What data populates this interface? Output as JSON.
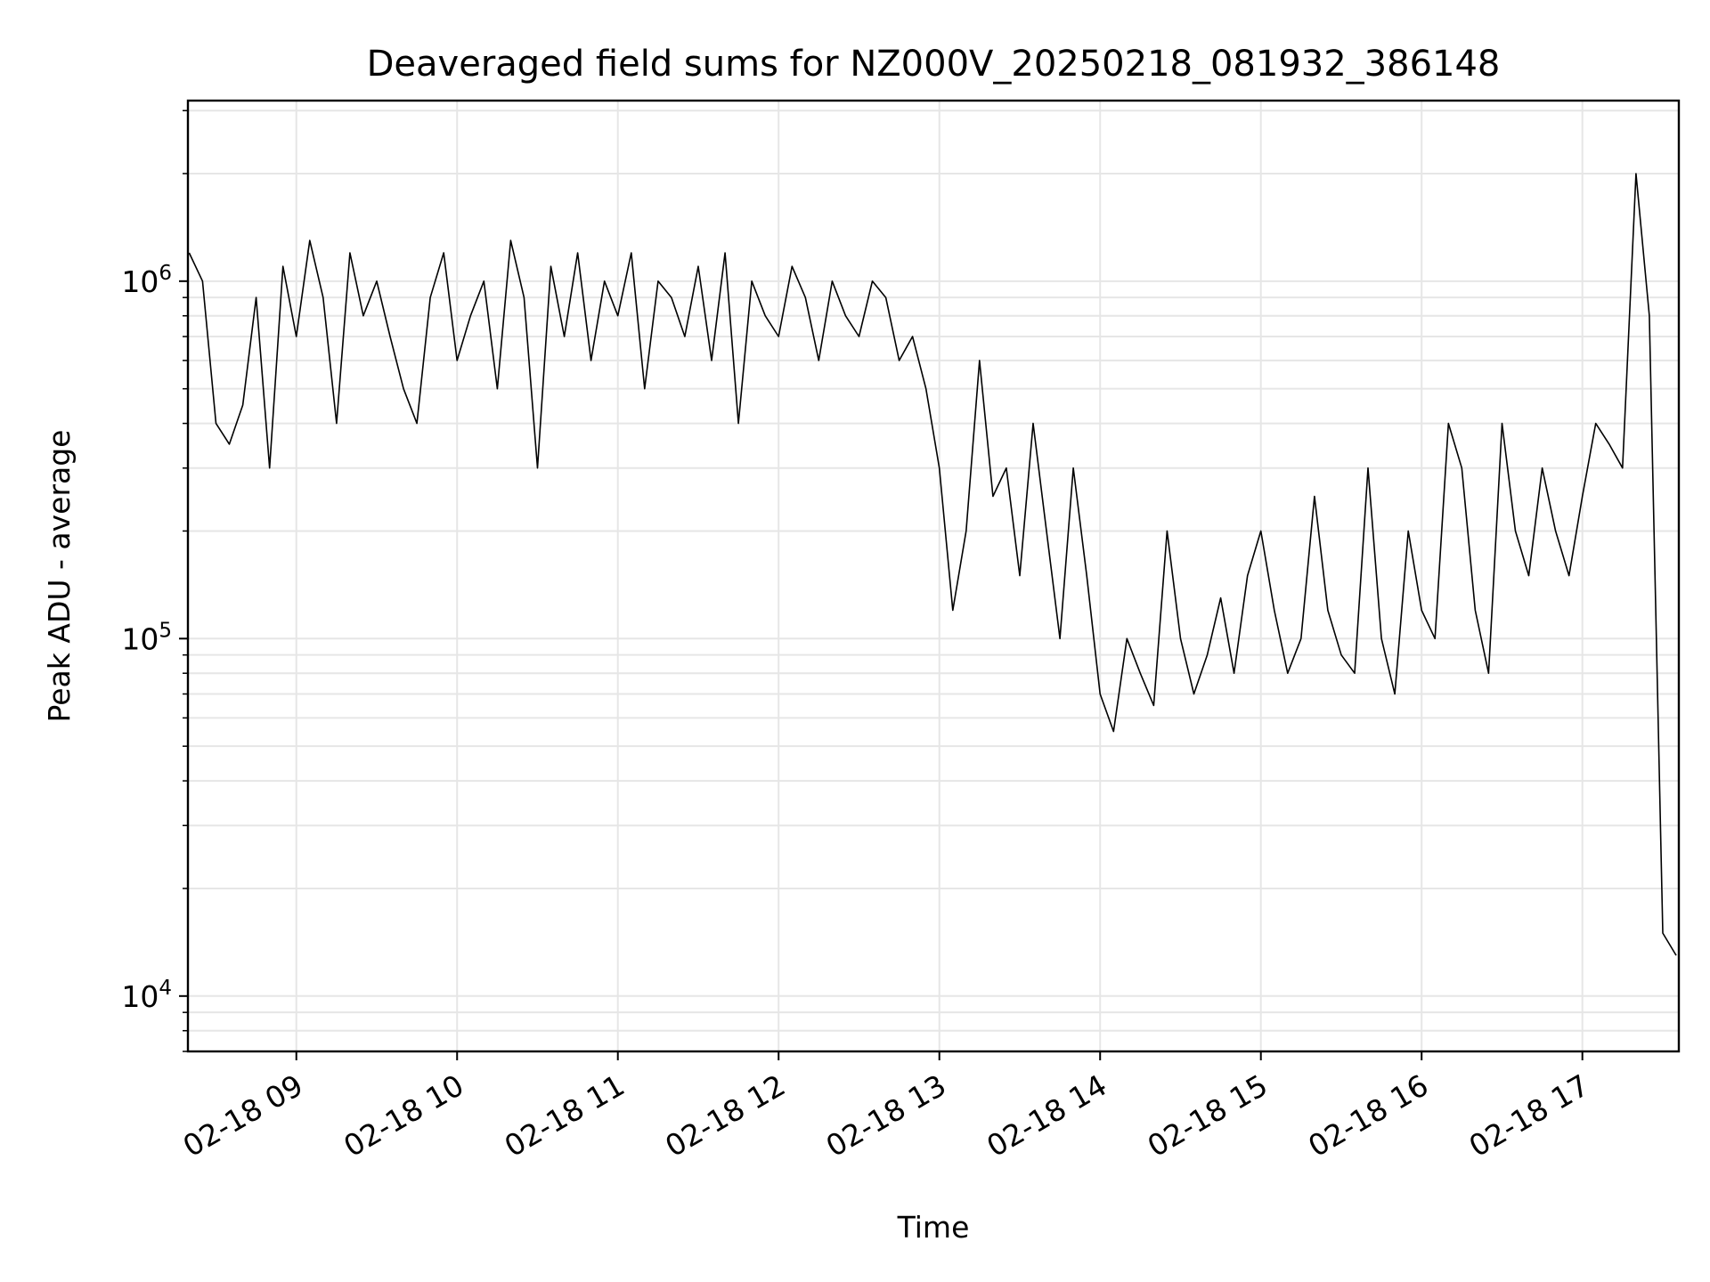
{
  "chart_data": {
    "type": "line",
    "title": "Deaveraged field sums for NZ000V_20250218_081932_386148",
    "xlabel": "Time",
    "ylabel": "Peak ADU - average",
    "yscale": "log",
    "grid": true,
    "line_color": "#000000",
    "grid_color": "#e6e6e6",
    "xlim": [
      "2025-02-18 08:19:32",
      "2025-02-18 17:36:00"
    ],
    "ylim": [
      7000,
      3200000
    ],
    "x_ticks": [
      {
        "value": "2025-02-18 09:00",
        "label": "02-18 09"
      },
      {
        "value": "2025-02-18 10:00",
        "label": "02-18 10"
      },
      {
        "value": "2025-02-18 11:00",
        "label": "02-18 11"
      },
      {
        "value": "2025-02-18 12:00",
        "label": "02-18 12"
      },
      {
        "value": "2025-02-18 13:00",
        "label": "02-18 13"
      },
      {
        "value": "2025-02-18 14:00",
        "label": "02-18 14"
      },
      {
        "value": "2025-02-18 15:00",
        "label": "02-18 15"
      },
      {
        "value": "2025-02-18 16:00",
        "label": "02-18 16"
      },
      {
        "value": "2025-02-18 17:00",
        "label": "02-18 17"
      }
    ],
    "y_ticks": [
      {
        "value": 10000,
        "base": "10",
        "exp": "4"
      },
      {
        "value": 100000,
        "base": "10",
        "exp": "5"
      },
      {
        "value": 1000000,
        "base": "10",
        "exp": "6"
      }
    ],
    "series": [
      {
        "x": [
          "2025-02-18 08:20",
          "2025-02-18 08:25",
          "2025-02-18 08:30",
          "2025-02-18 08:35",
          "2025-02-18 08:40",
          "2025-02-18 08:45",
          "2025-02-18 08:50",
          "2025-02-18 08:55",
          "2025-02-18 09:00",
          "2025-02-18 09:05",
          "2025-02-18 09:10",
          "2025-02-18 09:15",
          "2025-02-18 09:20",
          "2025-02-18 09:25",
          "2025-02-18 09:30",
          "2025-02-18 09:35",
          "2025-02-18 09:40",
          "2025-02-18 09:45",
          "2025-02-18 09:50",
          "2025-02-18 09:55",
          "2025-02-18 10:00",
          "2025-02-18 10:05",
          "2025-02-18 10:10",
          "2025-02-18 10:15",
          "2025-02-18 10:20",
          "2025-02-18 10:25",
          "2025-02-18 10:30",
          "2025-02-18 10:35",
          "2025-02-18 10:40",
          "2025-02-18 10:45",
          "2025-02-18 10:50",
          "2025-02-18 10:55",
          "2025-02-18 11:00",
          "2025-02-18 11:05",
          "2025-02-18 11:10",
          "2025-02-18 11:15",
          "2025-02-18 11:20",
          "2025-02-18 11:25",
          "2025-02-18 11:30",
          "2025-02-18 11:35",
          "2025-02-18 11:40",
          "2025-02-18 11:45",
          "2025-02-18 11:50",
          "2025-02-18 11:55",
          "2025-02-18 12:00",
          "2025-02-18 12:05",
          "2025-02-18 12:10",
          "2025-02-18 12:15",
          "2025-02-18 12:20",
          "2025-02-18 12:25",
          "2025-02-18 12:30",
          "2025-02-18 12:35",
          "2025-02-18 12:40",
          "2025-02-18 12:45",
          "2025-02-18 12:50",
          "2025-02-18 12:55",
          "2025-02-18 13:00",
          "2025-02-18 13:05",
          "2025-02-18 13:10",
          "2025-02-18 13:15",
          "2025-02-18 13:20",
          "2025-02-18 13:25",
          "2025-02-18 13:30",
          "2025-02-18 13:35",
          "2025-02-18 13:40",
          "2025-02-18 13:45",
          "2025-02-18 13:50",
          "2025-02-18 13:55",
          "2025-02-18 14:00",
          "2025-02-18 14:05",
          "2025-02-18 14:10",
          "2025-02-18 14:15",
          "2025-02-18 14:20",
          "2025-02-18 14:25",
          "2025-02-18 14:30",
          "2025-02-18 14:35",
          "2025-02-18 14:40",
          "2025-02-18 14:45",
          "2025-02-18 14:50",
          "2025-02-18 14:55",
          "2025-02-18 15:00",
          "2025-02-18 15:05",
          "2025-02-18 15:10",
          "2025-02-18 15:15",
          "2025-02-18 15:20",
          "2025-02-18 15:25",
          "2025-02-18 15:30",
          "2025-02-18 15:35",
          "2025-02-18 15:40",
          "2025-02-18 15:45",
          "2025-02-18 15:50",
          "2025-02-18 15:55",
          "2025-02-18 16:00",
          "2025-02-18 16:05",
          "2025-02-18 16:10",
          "2025-02-18 16:15",
          "2025-02-18 16:20",
          "2025-02-18 16:25",
          "2025-02-18 16:30",
          "2025-02-18 16:35",
          "2025-02-18 16:40",
          "2025-02-18 16:45",
          "2025-02-18 16:50",
          "2025-02-18 16:55",
          "2025-02-18 17:00",
          "2025-02-18 17:05",
          "2025-02-18 17:10",
          "2025-02-18 17:15",
          "2025-02-18 17:20",
          "2025-02-18 17:25",
          "2025-02-18 17:30",
          "2025-02-18 17:35"
        ],
        "y": [
          1200000,
          1000000,
          400000,
          350000,
          450000,
          900000,
          300000,
          1100000,
          700000,
          1300000,
          900000,
          400000,
          1200000,
          800000,
          1000000,
          700000,
          500000,
          400000,
          900000,
          1200000,
          600000,
          800000,
          1000000,
          500000,
          1300000,
          900000,
          300000,
          1100000,
          700000,
          1200000,
          600000,
          1000000,
          800000,
          1200000,
          500000,
          1000000,
          900000,
          700000,
          1100000,
          600000,
          1200000,
          400000,
          1000000,
          800000,
          700000,
          1100000,
          900000,
          600000,
          1000000,
          800000,
          700000,
          1000000,
          900000,
          600000,
          700000,
          500000,
          300000,
          120000,
          200000,
          600000,
          250000,
          300000,
          150000,
          400000,
          200000,
          100000,
          300000,
          150000,
          70000,
          55000,
          100000,
          80000,
          65000,
          200000,
          100000,
          70000,
          90000,
          130000,
          80000,
          150000,
          200000,
          120000,
          80000,
          100000,
          250000,
          120000,
          90000,
          80000,
          300000,
          100000,
          70000,
          200000,
          120000,
          100000,
          400000,
          300000,
          120000,
          80000,
          400000,
          200000,
          150000,
          300000,
          200000,
          150000,
          250000,
          400000,
          350000,
          300000,
          2000000,
          800000,
          15000,
          13000
        ]
      }
    ]
  }
}
